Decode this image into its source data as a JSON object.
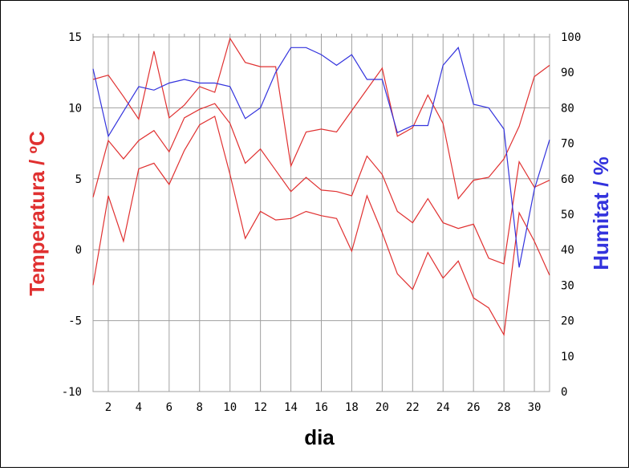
{
  "chart_data": {
    "type": "line",
    "xlabel": "dia",
    "ylabel_left": "Temperatura / ºC",
    "ylabel_right": "Humitat / %",
    "x": [
      1,
      2,
      3,
      4,
      5,
      6,
      7,
      8,
      9,
      10,
      11,
      12,
      13,
      14,
      15,
      16,
      17,
      18,
      19,
      20,
      21,
      22,
      23,
      24,
      25,
      26,
      27,
      28,
      29,
      30,
      31
    ],
    "xlim": [
      1,
      31
    ],
    "xticks": [
      2,
      4,
      6,
      8,
      10,
      12,
      14,
      16,
      18,
      20,
      22,
      24,
      26,
      28,
      30
    ],
    "ylim_left": [
      -10,
      15
    ],
    "yticks_left": [
      -10,
      -5,
      0,
      5,
      10,
      15
    ],
    "ylim_right": [
      0,
      100
    ],
    "yticks_right": [
      0,
      10,
      20,
      30,
      40,
      50,
      60,
      70,
      80,
      90,
      100
    ],
    "grid": true,
    "colors": {
      "temperature": "#e03030",
      "humidity": "#3333dd",
      "grid": "#a0a0a0"
    },
    "series": [
      {
        "name": "",
        "axis": "left",
        "color": "#e03030",
        "values": [
          12.0,
          12.3,
          10.8,
          9.2,
          14.0,
          9.3,
          10.2,
          11.5,
          11.1,
          14.9,
          13.2,
          12.9,
          12.9,
          5.9,
          8.3,
          8.5,
          8.3,
          9.8,
          11.3,
          12.8,
          8.0,
          8.6,
          10.9,
          8.9,
          3.6,
          4.9,
          5.1,
          6.4,
          8.7,
          12.2,
          13.0
        ]
      },
      {
        "name": "",
        "axis": "left",
        "color": "#e03030",
        "values": [
          3.7,
          7.7,
          6.4,
          7.7,
          8.4,
          6.9,
          9.3,
          9.9,
          10.3,
          8.9,
          6.1,
          7.1,
          5.6,
          4.1,
          5.1,
          4.2,
          4.1,
          3.8,
          6.6,
          5.3,
          2.7,
          1.9,
          3.6,
          1.9,
          1.5,
          1.8,
          -0.6,
          -1.0,
          6.2,
          4.4,
          4.9
        ]
      },
      {
        "name": "",
        "axis": "left",
        "color": "#e03030",
        "values": [
          -2.5,
          3.8,
          0.6,
          5.7,
          6.1,
          4.6,
          7.0,
          8.8,
          9.4,
          5.3,
          0.8,
          2.7,
          2.1,
          2.2,
          2.7,
          2.4,
          2.2,
          -0.1,
          3.8,
          1.2,
          -1.7,
          -2.8,
          -0.2,
          -2.0,
          -0.8,
          -3.4,
          -4.1,
          -6.0,
          2.6,
          0.6,
          -1.8
        ]
      },
      {
        "name": "",
        "axis": "right",
        "color": "#3333dd",
        "values": [
          91,
          72,
          79,
          86,
          85,
          87,
          88,
          87,
          87,
          86,
          77,
          80,
          90,
          97,
          97,
          95,
          92,
          95,
          88,
          88,
          73,
          75,
          75,
          92,
          97,
          81,
          80,
          74,
          35,
          57,
          71
        ]
      }
    ]
  }
}
